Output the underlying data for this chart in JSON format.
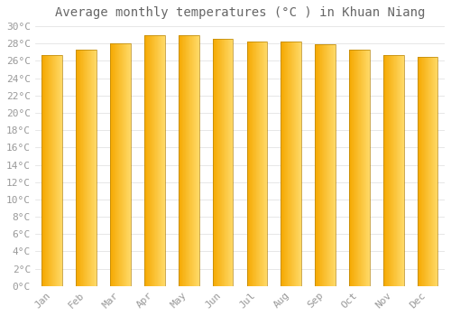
{
  "title": "Average monthly temperatures (°C ) in Khuan Niang",
  "months": [
    "Jan",
    "Feb",
    "Mar",
    "Apr",
    "May",
    "Jun",
    "Jul",
    "Aug",
    "Sep",
    "Oct",
    "Nov",
    "Dec"
  ],
  "values": [
    26.7,
    27.3,
    28.0,
    29.0,
    29.0,
    28.5,
    28.2,
    28.2,
    27.9,
    27.3,
    26.7,
    26.5
  ],
  "bar_color_left": "#F5A800",
  "bar_color_right": "#FFD966",
  "bar_edge_color": "#B8860B",
  "background_color": "#FFFFFF",
  "grid_color": "#DDDDDD",
  "tick_label_color": "#999999",
  "title_color": "#666666",
  "ylim_min": 0,
  "ylim_max": 30,
  "ytick_step": 2,
  "title_fontsize": 10,
  "tick_fontsize": 8,
  "bar_width": 0.6
}
